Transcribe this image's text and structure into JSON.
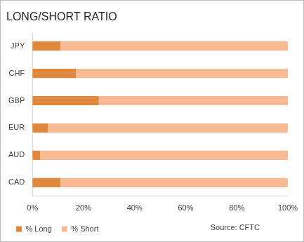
{
  "chart_data": {
    "type": "bar",
    "title": "LONG/SHORT RATIO",
    "orientation": "horizontal",
    "stacked": true,
    "categories": [
      "JPY",
      "CHF",
      "GBP",
      "EUR",
      "AUD",
      "CAD"
    ],
    "series": [
      {
        "name": "% Long",
        "color": "#e0883c",
        "values": [
          11,
          17,
          26,
          6,
          3,
          11
        ]
      },
      {
        "name": "% Short",
        "color": "#f9bb93",
        "values": [
          89,
          83,
          74,
          94,
          97,
          89
        ]
      }
    ],
    "xlim": [
      0,
      100
    ],
    "xticks": [
      {
        "value": 0,
        "label": "0%"
      },
      {
        "value": 20,
        "label": "20%"
      },
      {
        "value": 40,
        "label": "40%"
      },
      {
        "value": 60,
        "label": "60%"
      },
      {
        "value": 80,
        "label": "80%"
      },
      {
        "value": 100,
        "label": "100%"
      }
    ],
    "grid": false,
    "legend": "bottom",
    "annotation": "Source: CFTC"
  }
}
